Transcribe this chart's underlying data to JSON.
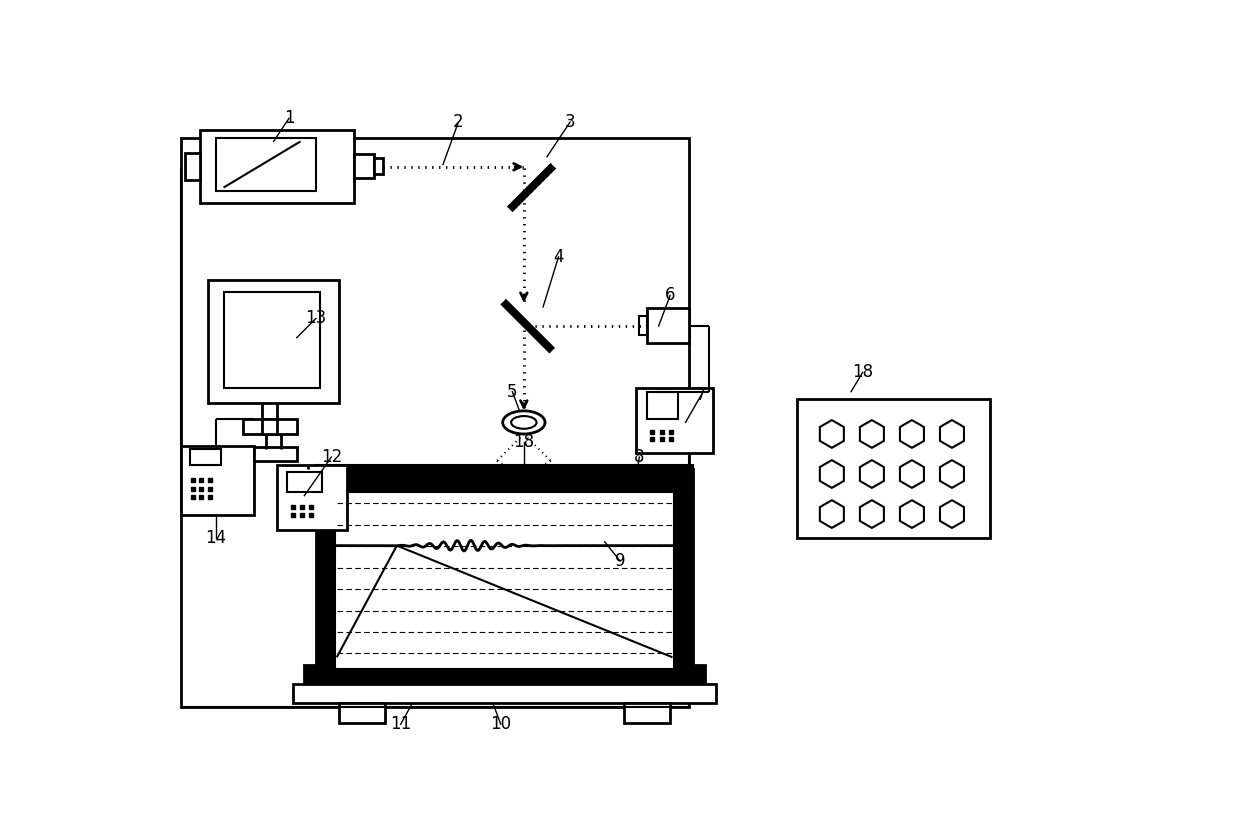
{
  "bg_color": "#ffffff",
  "lc": "#000000",
  "fig_w": 12.4,
  "fig_h": 8.38,
  "dpi": 100
}
